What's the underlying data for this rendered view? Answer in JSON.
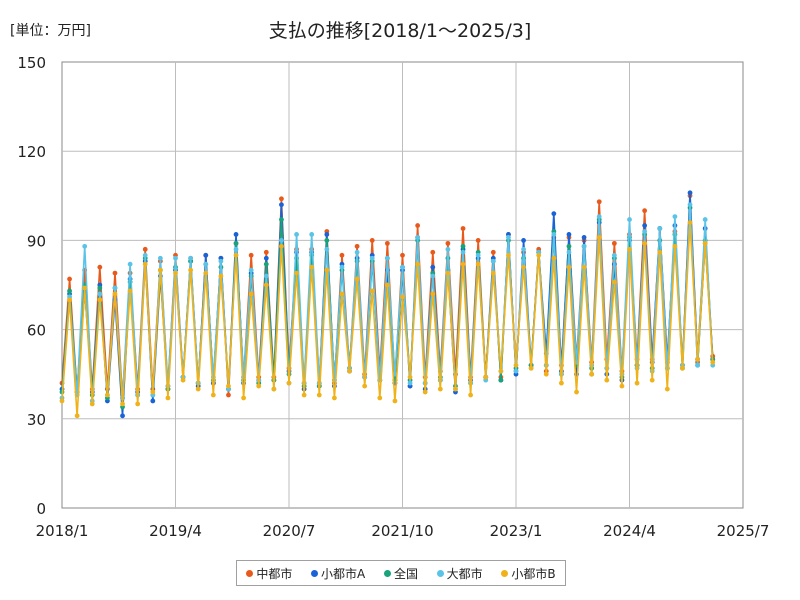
{
  "chart_data": {
    "type": "line",
    "title": "支払の推移[2018/1～2025/3]",
    "unit_label": "[単位：万円]",
    "xlabel": "",
    "ylabel": "",
    "ylim": [
      0,
      150
    ],
    "yticks": [
      0,
      30,
      60,
      90,
      120,
      150
    ],
    "xlim": [
      0,
      90
    ],
    "xticks": [
      {
        "month_index": 0,
        "label": "2018/1"
      },
      {
        "month_index": 15,
        "label": "2019/4"
      },
      {
        "month_index": 30,
        "label": "2020/7"
      },
      {
        "month_index": 45,
        "label": "2021/10"
      },
      {
        "month_index": 60,
        "label": "2023/1"
      },
      {
        "month_index": 75,
        "label": "2024/4"
      },
      {
        "month_index": 90,
        "label": "2025/7"
      }
    ],
    "grid": true,
    "legend_position": "bottom",
    "series": [
      {
        "name": "中都市",
        "color": "#e85a1c",
        "values": [
          42,
          77,
          39,
          80,
          40,
          81,
          40,
          79,
          37,
          79,
          40,
          87,
          40,
          83,
          41,
          85,
          44,
          84,
          42,
          85,
          42,
          84,
          38,
          89,
          44,
          85,
          44,
          86,
          44,
          104,
          47,
          87,
          42,
          87,
          42,
          93,
          42,
          85,
          47,
          88,
          45,
          90,
          46,
          89,
          43,
          85,
          41,
          95,
          44,
          86,
          46,
          89,
          45,
          94,
          44,
          90,
          44,
          86,
          44,
          92,
          46,
          86,
          48,
          87,
          46,
          91,
          48,
          91,
          50,
          90,
          49,
          103,
          50,
          89,
          46,
          92,
          50,
          100,
          50,
          94,
          50,
          93,
          48,
          105,
          49,
          89,
          51
        ]
      },
      {
        "name": "小都市A",
        "color": "#1a63d6",
        "values": [
          40,
          72,
          39,
          73,
          39,
          75,
          36,
          70,
          31,
          77,
          39,
          83,
          36,
          78,
          40,
          80,
          44,
          83,
          41,
          85,
          42,
          84,
          40,
          92,
          42,
          79,
          43,
          84,
          43,
          102,
          46,
          86,
          40,
          86,
          41,
          92,
          41,
          82,
          46,
          84,
          44,
          85,
          43,
          80,
          42,
          80,
          41,
          91,
          40,
          81,
          43,
          80,
          39,
          87,
          43,
          84,
          44,
          84,
          43,
          92,
          45,
          90,
          48,
          86,
          52,
          99,
          46,
          92,
          45,
          91,
          45,
          96,
          45,
          82,
          43,
          90,
          48,
          95,
          49,
          94,
          49,
          95,
          48,
          106,
          50,
          94,
          50
        ]
      },
      {
        "name": "全国",
        "color": "#18a37a",
        "values": [
          39,
          73,
          39,
          75,
          38,
          74,
          37,
          74,
          34,
          76,
          38,
          84,
          38,
          80,
          40,
          81,
          44,
          83,
          42,
          82,
          43,
          81,
          40,
          89,
          43,
          78,
          42,
          82,
          43,
          97,
          45,
          84,
          41,
          85,
          41,
          90,
          43,
          80,
          47,
          83,
          44,
          83,
          43,
          84,
          43,
          81,
          43,
          90,
          42,
          79,
          44,
          84,
          41,
          88,
          42,
          86,
          44,
          83,
          43,
          90,
          47,
          84,
          48,
          86,
          48,
          93,
          45,
          88,
          48,
          88,
          47,
          97,
          47,
          84,
          44,
          91,
          48,
          92,
          47,
          90,
          47,
          92,
          47,
          101,
          48,
          90,
          50
        ]
      },
      {
        "name": "大都市",
        "color": "#5bc3e8",
        "values": [
          37,
          71,
          38,
          88,
          36,
          72,
          38,
          74,
          37,
          82,
          38,
          85,
          38,
          84,
          41,
          84,
          44,
          84,
          42,
          82,
          44,
          83,
          40,
          87,
          44,
          80,
          43,
          78,
          40,
          90,
          42,
          92,
          42,
          92,
          42,
          87,
          43,
          81,
          47,
          86,
          44,
          84,
          43,
          84,
          45,
          81,
          42,
          91,
          42,
          78,
          43,
          87,
          40,
          86,
          42,
          85,
          43,
          83,
          46,
          91,
          46,
          87,
          47,
          86,
          48,
          92,
          45,
          86,
          49,
          88,
          48,
          98,
          47,
          85,
          45,
          97,
          47,
          93,
          46,
          94,
          47,
          98,
          48,
          102,
          48,
          97,
          48
        ]
      },
      {
        "name": "小都市B",
        "color": "#f0b21a",
        "values": [
          36,
          70,
          31,
          74,
          35,
          70,
          38,
          72,
          35,
          73,
          35,
          82,
          39,
          80,
          37,
          79,
          43,
          80,
          40,
          79,
          38,
          78,
          41,
          85,
          37,
          72,
          41,
          75,
          40,
          88,
          42,
          79,
          38,
          81,
          38,
          80,
          37,
          72,
          46,
          77,
          41,
          73,
          37,
          75,
          36,
          71,
          44,
          82,
          39,
          72,
          40,
          79,
          40,
          82,
          38,
          82,
          44,
          79,
          46,
          85,
          48,
          81,
          47,
          85,
          45,
          84,
          42,
          81,
          39,
          81,
          45,
          91,
          43,
          76,
          41,
          87,
          42,
          89,
          43,
          86,
          40,
          88,
          47,
          96,
          50,
          89,
          49
        ]
      }
    ]
  }
}
